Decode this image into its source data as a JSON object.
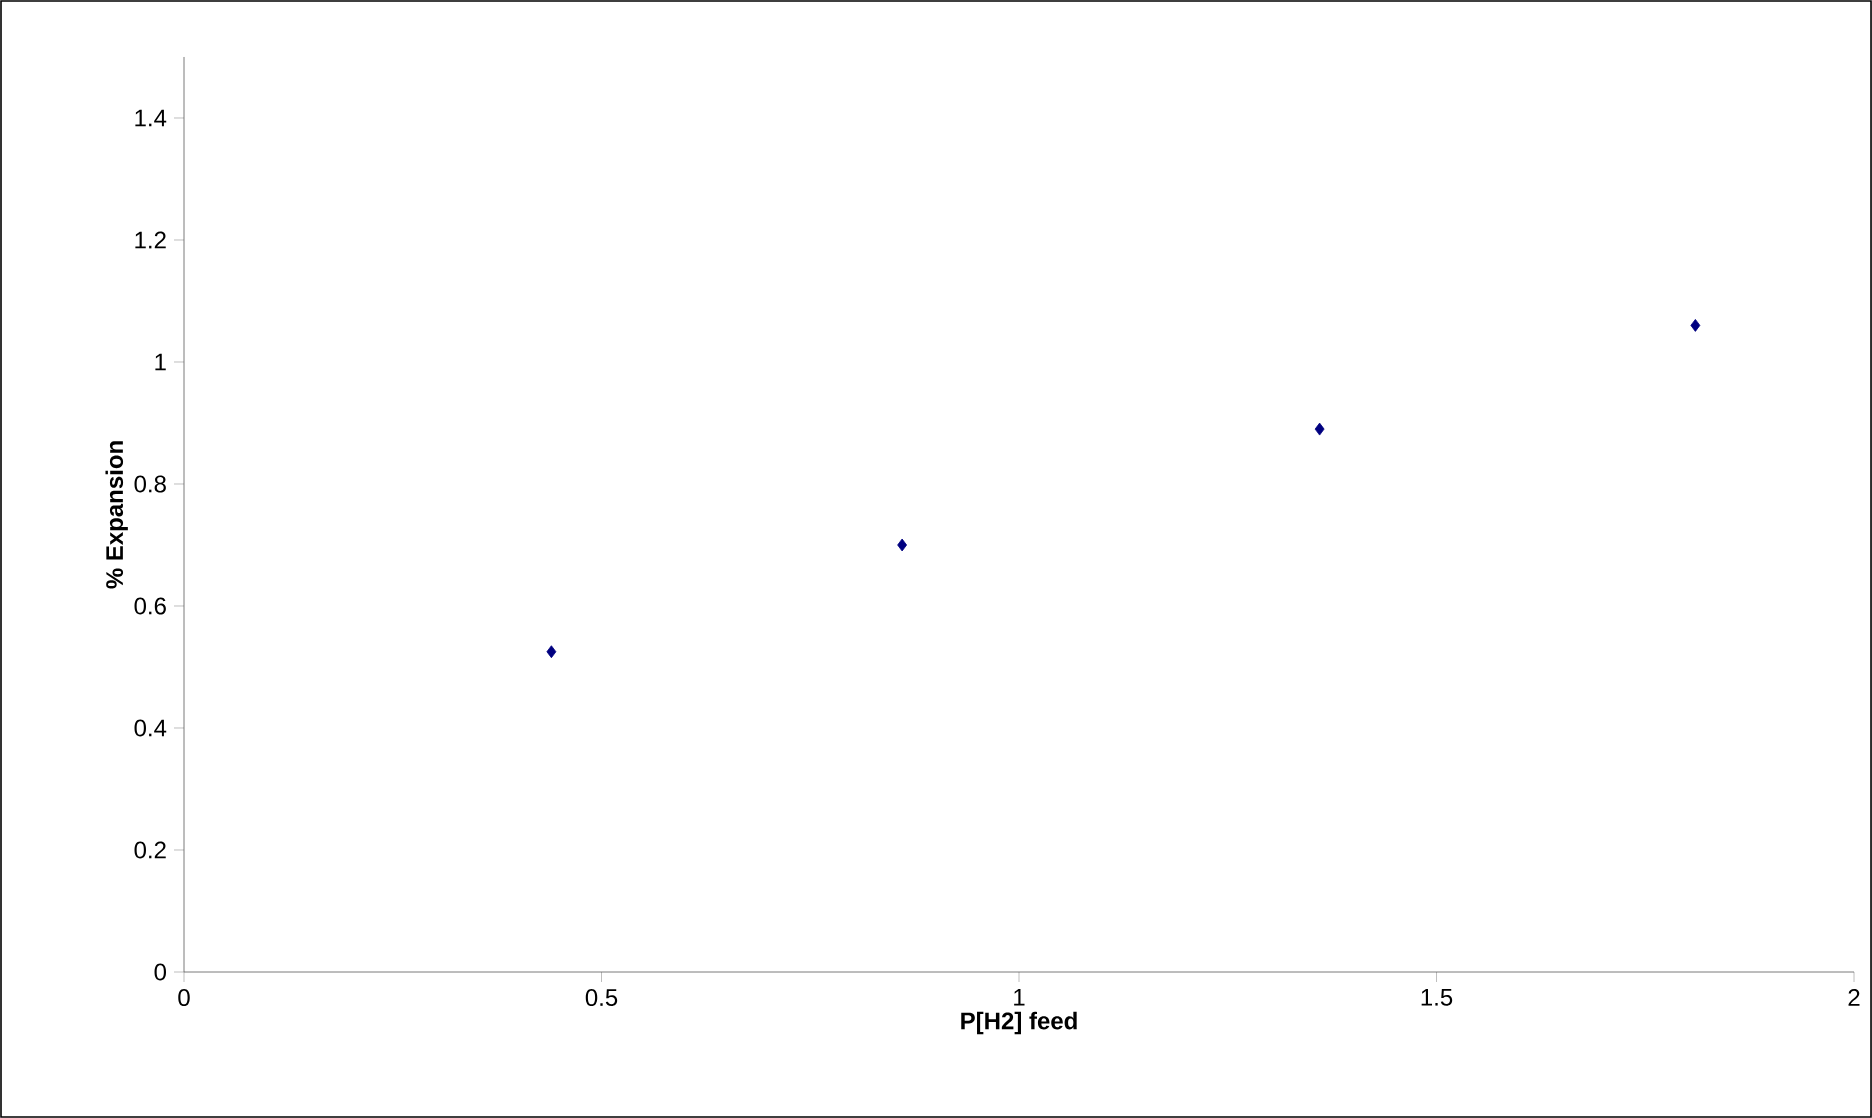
{
  "chart_data": {
    "type": "scatter",
    "xlabel": "P[H2] feed",
    "ylabel": "% Expansion",
    "x": [
      0.44,
      0.86,
      1.36,
      1.81
    ],
    "series": [
      {
        "color": "#000080",
        "values": [
          0.525,
          0.7,
          0.89,
          1.06
        ]
      }
    ],
    "marker": "diamond",
    "grid": false,
    "xlim": [
      0,
      2
    ],
    "xticks": [
      0,
      0.5,
      1,
      1.5,
      2
    ],
    "ylim": [
      0,
      1.5
    ],
    "yticks": [
      0,
      0.2,
      0.4,
      0.6,
      0.8,
      1,
      1.2,
      1.4
    ]
  }
}
